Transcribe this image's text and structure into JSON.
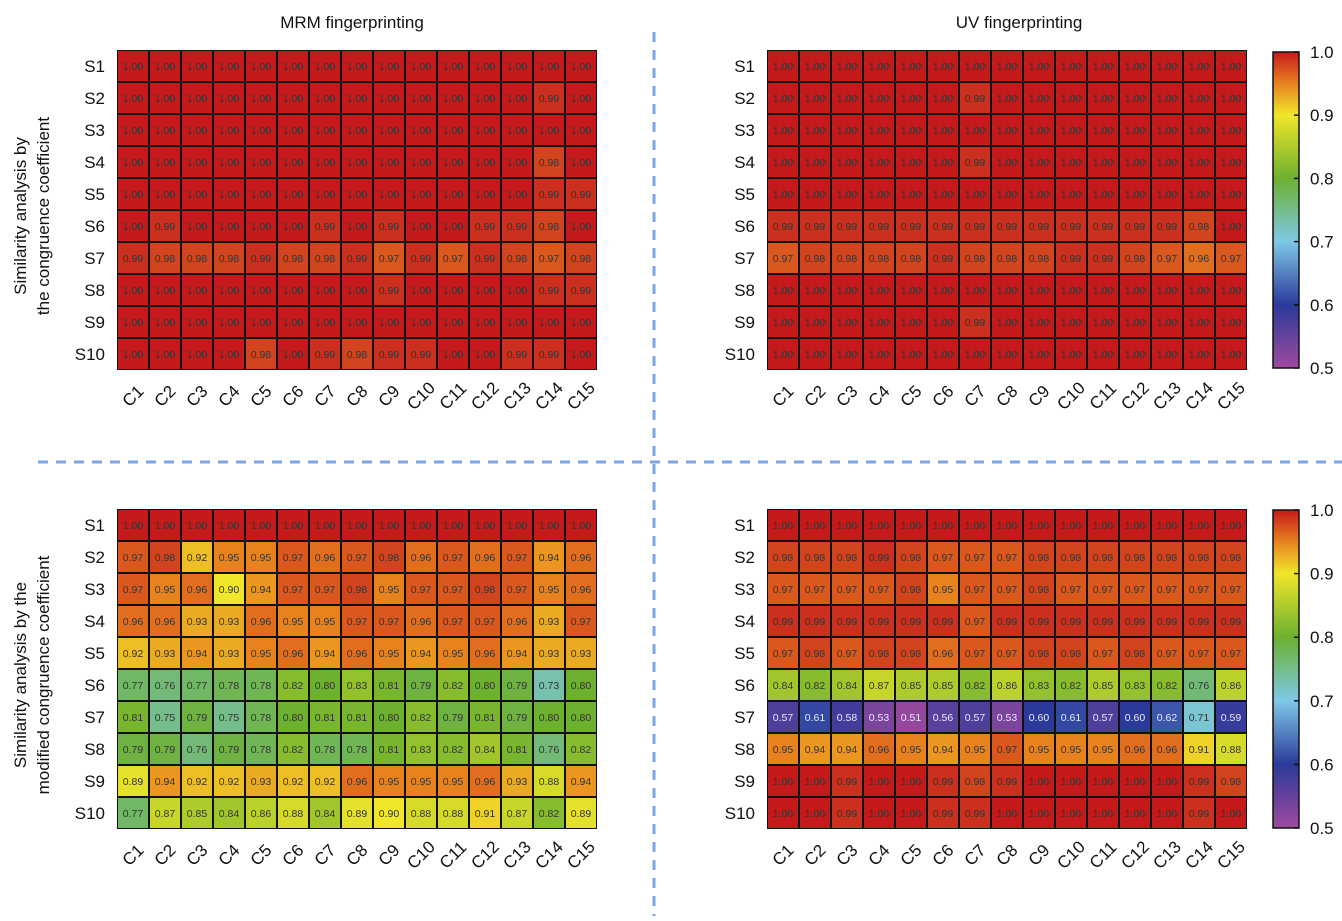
{
  "figure": {
    "titles": [
      "MRM fingerprinting",
      "UV fingerprinting"
    ],
    "row_labels": [
      "Similarity analysis by the congruence coefficient",
      "Similarity analysis by the modified congruence coefficient"
    ],
    "row_label_lines": [
      [
        "Similarity analysis by",
        "the congruence coefficient"
      ],
      [
        "Similarity analysis by the",
        "modified congruence coefficient"
      ]
    ],
    "divider_color": "#7ea6e0",
    "colorbar": {
      "ticks": [
        "1.0",
        "0.9",
        "0.8",
        "0.7",
        "0.6",
        "0.5"
      ]
    }
  },
  "chart_data": [
    {
      "type": "heatmap",
      "title": "MRM fingerprinting",
      "ylabel": "Similarity analysis by the congruence coefficient",
      "x": [
        "C1",
        "C2",
        "C3",
        "C4",
        "C5",
        "C6",
        "C7",
        "C8",
        "C9",
        "C10",
        "C11",
        "C12",
        "C13",
        "C14",
        "C15"
      ],
      "y": [
        "S1",
        "S2",
        "S3",
        "S4",
        "S5",
        "S6",
        "S7",
        "S8",
        "S9",
        "S10"
      ],
      "z": [
        [
          "1.00",
          "1.00",
          "1.00",
          "1.00",
          "1.00",
          "1.00",
          "1.00",
          "1.00",
          "1.00",
          "1.00",
          "1.00",
          "1.00",
          "1.00",
          "1.00",
          "1.00"
        ],
        [
          "1.00",
          "1.00",
          "1.00",
          "1.00",
          "1.00",
          "1.00",
          "1.00",
          "1.00",
          "1.00",
          "1.00",
          "1.00",
          "1.00",
          "1.00",
          "0.99",
          "1.00"
        ],
        [
          "1.00",
          "1.00",
          "1.00",
          "1.00",
          "1.00",
          "1.00",
          "1.00",
          "1.00",
          "1.00",
          "1.00",
          "1.00",
          "1.00",
          "1.00",
          "1.00",
          "1.00"
        ],
        [
          "1.00",
          "1.00",
          "1.00",
          "1.00",
          "1.00",
          "1.00",
          "1.00",
          "1.00",
          "1.00",
          "1.00",
          "1.00",
          "1.00",
          "1.00",
          "0.98",
          "1.00"
        ],
        [
          "1.00",
          "1.00",
          "1.00",
          "1.00",
          "1.00",
          "1.00",
          "1.00",
          "1.00",
          "1.00",
          "1.00",
          "1.00",
          "1.00",
          "1.00",
          "0.99",
          "0.99"
        ],
        [
          "1.00",
          "0.99",
          "1.00",
          "1.00",
          "1.00",
          "1.00",
          "0.99",
          "1.00",
          "0.99",
          "1.00",
          "1.00",
          "0.99",
          "0.99",
          "0.98",
          "1.00"
        ],
        [
          "0.99",
          "0.98",
          "0.98",
          "0.98",
          "0.99",
          "0.98",
          "0.98",
          "0.99",
          "0.97",
          "0.99",
          "0.97",
          "0.99",
          "0.98",
          "0.97",
          "0.98"
        ],
        [
          "1.00",
          "1.00",
          "1.00",
          "1.00",
          "1.00",
          "1.00",
          "1.00",
          "1.00",
          "0.99",
          "1.00",
          "1.00",
          "1.00",
          "1.00",
          "0.99",
          "0.99"
        ],
        [
          "1.00",
          "1.00",
          "1.00",
          "1.00",
          "1.00",
          "1.00",
          "1.00",
          "1.00",
          "1.00",
          "1.00",
          "1.00",
          "1.00",
          "1.00",
          "1.00",
          "1.00"
        ],
        [
          "1.00",
          "1.00",
          "1.00",
          "1.00",
          "0.98",
          "1.00",
          "0.99",
          "0.98",
          "0.99",
          "0.99",
          "1.00",
          "1.00",
          "0.99",
          "0.99",
          "1.00"
        ]
      ],
      "zlim": [
        0.5,
        1.0
      ]
    },
    {
      "type": "heatmap",
      "title": "UV fingerprinting",
      "x": [
        "C1",
        "C2",
        "C3",
        "C4",
        "C5",
        "C6",
        "C7",
        "C8",
        "C9",
        "C10",
        "C11",
        "C12",
        "C13",
        "C14",
        "C15"
      ],
      "y": [
        "S1",
        "S2",
        "S3",
        "S4",
        "S5",
        "S6",
        "S7",
        "S8",
        "S9",
        "S10"
      ],
      "z": [
        [
          "1.00",
          "1.00",
          "1.00",
          "1.00",
          "1.00",
          "1.00",
          "1.00",
          "1.00",
          "1.00",
          "1.00",
          "1.00",
          "1.00",
          "1.00",
          "1.00",
          "1.00"
        ],
        [
          "1.00",
          "1.00",
          "1.00",
          "1.00",
          "1.00",
          "1.00",
          "0.99",
          "1.00",
          "1.00",
          "1.00",
          "1.00",
          "1.00",
          "1.00",
          "1.00",
          "1.00"
        ],
        [
          "1.00",
          "1.00",
          "1.00",
          "1.00",
          "1.00",
          "1.00",
          "1.00",
          "1.00",
          "1.00",
          "1.00",
          "1.00",
          "1.00",
          "1.00",
          "1.00",
          "1.00"
        ],
        [
          "1.00",
          "1.00",
          "1.00",
          "1.00",
          "1.00",
          "1.00",
          "0.99",
          "1.00",
          "1.00",
          "1.00",
          "1.00",
          "1.00",
          "1.00",
          "1.00",
          "1.00"
        ],
        [
          "1.00",
          "1.00",
          "1.00",
          "1.00",
          "1.00",
          "1.00",
          "1.00",
          "1.00",
          "1.00",
          "1.00",
          "1.00",
          "1.00",
          "1.00",
          "1.00",
          "1.00"
        ],
        [
          "0.99",
          "0.99",
          "0.99",
          "0.99",
          "0.99",
          "0.99",
          "0.99",
          "0.99",
          "0.99",
          "0.99",
          "0.99",
          "0.99",
          "0.99",
          "0.98",
          "1.00"
        ],
        [
          "0.97",
          "0.98",
          "0.98",
          "0.98",
          "0.98",
          "0.99",
          "0.98",
          "0.98",
          "0.98",
          "0.99",
          "0.99",
          "0.98",
          "0.97",
          "0.96",
          "0.97"
        ],
        [
          "1.00",
          "1.00",
          "1.00",
          "1.00",
          "1.00",
          "1.00",
          "1.00",
          "1.00",
          "1.00",
          "1.00",
          "1.00",
          "1.00",
          "1.00",
          "1.00",
          "1.00"
        ],
        [
          "1.00",
          "1.00",
          "1.00",
          "1.00",
          "1.00",
          "1.00",
          "0.99",
          "1.00",
          "1.00",
          "1.00",
          "1.00",
          "1.00",
          "1.00",
          "1.00",
          "1.00"
        ],
        [
          "1.00",
          "1.00",
          "1.00",
          "1.00",
          "1.00",
          "1.00",
          "1.00",
          "1.00",
          "1.00",
          "1.00",
          "1.00",
          "1.00",
          "1.00",
          "1.00",
          "1.00"
        ]
      ],
      "zlim": [
        0.5,
        1.0
      ]
    },
    {
      "type": "heatmap",
      "ylabel": "Similarity analysis by the modified congruence coefficient",
      "x": [
        "C1",
        "C2",
        "C3",
        "C4",
        "C5",
        "C6",
        "C7",
        "C8",
        "C9",
        "C10",
        "C11",
        "C12",
        "C13",
        "C14",
        "C15"
      ],
      "y": [
        "S1",
        "S2",
        "S3",
        "S4",
        "S5",
        "S6",
        "S7",
        "S8",
        "S9",
        "S10"
      ],
      "z": [
        [
          "1.00",
          "1.00",
          "1.00",
          "1.00",
          "1.00",
          "1.00",
          "1.00",
          "1.00",
          "1.00",
          "1.00",
          "1.00",
          "1.00",
          "1.00",
          "1.00",
          "1.00"
        ],
        [
          "0.97",
          "0.98",
          "0.92",
          "0.95",
          "0.95",
          "0.97",
          "0.96",
          "0.97",
          "0.98",
          "0.96",
          "0.97",
          "0.96",
          "0.97",
          "0.94",
          "0.96"
        ],
        [
          "0.97",
          "0.95",
          "0.96",
          "0.90",
          "0.94",
          "0.97",
          "0.97",
          "0.98",
          "0.95",
          "0.97",
          "0.97",
          "0.98",
          "0.97",
          "0.95",
          "0.96"
        ],
        [
          "0.96",
          "0.96",
          "0.93",
          "0.93",
          "0.96",
          "0.95",
          "0.95",
          "0.97",
          "0.97",
          "0.96",
          "0.97",
          "0.97",
          "0.96",
          "0.93",
          "0.97"
        ],
        [
          "0.92",
          "0.93",
          "0.94",
          "0.93",
          "0.95",
          "0.96",
          "0.94",
          "0.96",
          "0.95",
          "0.94",
          "0.95",
          "0.96",
          "0.94",
          "0.93",
          "0.93"
        ],
        [
          "0.77",
          "0.76",
          "0.77",
          "0.78",
          "0.78",
          "0.82",
          "0.80",
          "0.83",
          "0.81",
          "0.79",
          "0.82",
          "0.80",
          "0.79",
          "0.73",
          "0.80"
        ],
        [
          "0.81",
          "0.75",
          "0.79",
          "0.75",
          "0.78",
          "0.80",
          "0.81",
          "0.81",
          "0.80",
          "0.82",
          "0.79",
          "0.81",
          "0.79",
          "0.80",
          "0.80"
        ],
        [
          "0.79",
          "0.79",
          "0.76",
          "0.79",
          "0.78",
          "0.82",
          "0.78",
          "0.78",
          "0.81",
          "0.83",
          "0.82",
          "0.84",
          "0.81",
          "0.76",
          "0.82"
        ],
        [
          "0.89",
          "0.94",
          "0.92",
          "0.92",
          "0.93",
          "0.92",
          "0.92",
          "0.96",
          "0.95",
          "0.95",
          "0.95",
          "0.96",
          "0.93",
          "0.88",
          "0.94"
        ],
        [
          "0.77",
          "0.87",
          "0.85",
          "0.84",
          "0.86",
          "0.88",
          "0.84",
          "0.89",
          "0.90",
          "0.88",
          "0.88",
          "0.91",
          "0.87",
          "0.82",
          "0.89"
        ]
      ],
      "zlim": [
        0.5,
        1.0
      ]
    },
    {
      "type": "heatmap",
      "x": [
        "C1",
        "C2",
        "C3",
        "C4",
        "C5",
        "C6",
        "C7",
        "C8",
        "C9",
        "C10",
        "C11",
        "C12",
        "C13",
        "C14",
        "C15"
      ],
      "y": [
        "S1",
        "S2",
        "S3",
        "S4",
        "S5",
        "S6",
        "S7",
        "S8",
        "S9",
        "S10"
      ],
      "z": [
        [
          "1.00",
          "1.00",
          "1.00",
          "1.00",
          "1.00",
          "1.00",
          "1.00",
          "1.00",
          "1.00",
          "1.00",
          "1.00",
          "1.00",
          "1.00",
          "1.00",
          "1.00"
        ],
        [
          "0.98",
          "0.98",
          "0.98",
          "0.99",
          "0.98",
          "0.97",
          "0.97",
          "0.97",
          "0.98",
          "0.98",
          "0.98",
          "0.98",
          "0.98",
          "0.98",
          "0.98"
        ],
        [
          "0.97",
          "0.97",
          "0.97",
          "0.97",
          "0.98",
          "0.95",
          "0.97",
          "0.97",
          "0.98",
          "0.97",
          "0.97",
          "0.97",
          "0.97",
          "0.97",
          "0.97"
        ],
        [
          "0.99",
          "0.99",
          "0.99",
          "0.99",
          "0.99",
          "0.99",
          "0.97",
          "0.99",
          "0.99",
          "0.99",
          "0.99",
          "0.99",
          "0.99",
          "0.99",
          "0.99"
        ],
        [
          "0.97",
          "0.98",
          "0.97",
          "0.98",
          "0.98",
          "0.96",
          "0.97",
          "0.97",
          "0.98",
          "0.98",
          "0.97",
          "0.98",
          "0.97",
          "0.97",
          "0.97"
        ],
        [
          "0.84",
          "0.82",
          "0.84",
          "0.87",
          "0.85",
          "0.85",
          "0.82",
          "0.86",
          "0.83",
          "0.82",
          "0.85",
          "0.83",
          "0.82",
          "0.76",
          "0.86"
        ],
        [
          "0.57",
          "0.61",
          "0.58",
          "0.53",
          "0.51",
          "0.56",
          "0.57",
          "0.53",
          "0.60",
          "0.61",
          "0.57",
          "0.60",
          "0.62",
          "0.71",
          "0.59"
        ],
        [
          "0.95",
          "0.94",
          "0.94",
          "0.96",
          "0.95",
          "0.94",
          "0.95",
          "0.97",
          "0.95",
          "0.95",
          "0.95",
          "0.96",
          "0.96",
          "0.91",
          "0.88"
        ],
        [
          "1.00",
          "1.00",
          "0.99",
          "1.00",
          "1.00",
          "0.99",
          "0.98",
          "0.99",
          "1.00",
          "1.00",
          "1.00",
          "1.00",
          "1.00",
          "0.99",
          "0.98"
        ],
        [
          "1.00",
          "1.00",
          "0.99",
          "1.00",
          "1.00",
          "0.99",
          "0.99",
          "1.00",
          "1.00",
          "1.00",
          "1.00",
          "1.00",
          "1.00",
          "0.99",
          "1.00"
        ]
      ],
      "zlim": [
        0.5,
        1.0
      ]
    }
  ]
}
